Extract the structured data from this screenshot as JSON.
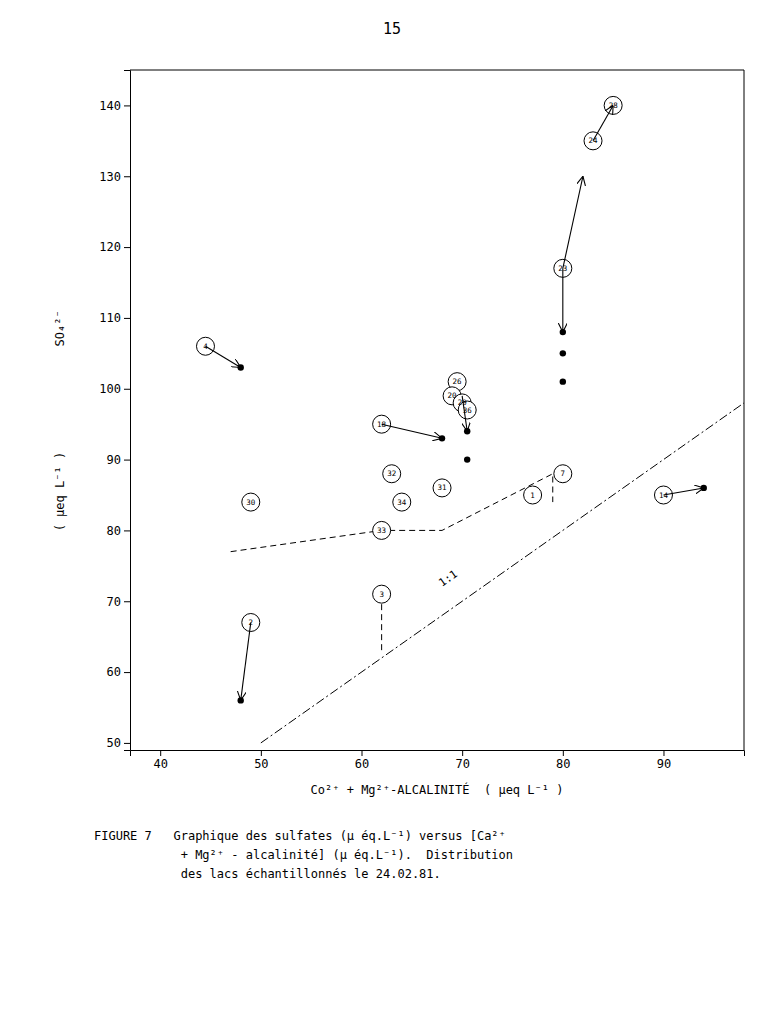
{
  "chart_data": {
    "type": "scatter",
    "title": "15",
    "x_label": "Co²⁺ + Mg²⁺-ALCALINITÉ  ( μeq L⁻¹ )",
    "y_label": [
      "SO₄²⁻",
      "( μeq L⁻¹ )"
    ],
    "caption": [
      "FIGURE 7   Graphique des sulfates (μ éq.L⁻¹) versus [Ca²⁺",
      "            + Mg²⁺ - alcalinité] (μ éq.L⁻¹).  Distribution",
      "            des lacs échantillonnés le 24.02.81."
    ],
    "xlim": [
      37,
      98
    ],
    "ylim": [
      49,
      145
    ],
    "xticks": [
      40,
      50,
      60,
      70,
      80,
      90
    ],
    "yticks": [
      50,
      60,
      70,
      80,
      90,
      100,
      110,
      120,
      130,
      140
    ],
    "points": {
      "labels": [
        "4",
        "30",
        "2",
        "18",
        "32",
        "33",
        "3",
        "34",
        "26",
        "20",
        "29",
        "36",
        "31",
        "23",
        "7",
        "1",
        "24",
        "28",
        "14"
      ],
      "x": [
        44.5,
        49,
        49,
        62,
        63,
        62,
        62,
        64,
        69.5,
        69,
        70,
        70.5,
        68,
        80,
        80,
        77,
        83,
        85,
        90
      ],
      "y": [
        106,
        84,
        67,
        95,
        88,
        80,
        71,
        84,
        101,
        99,
        98,
        97,
        86,
        117,
        88,
        85,
        135,
        140,
        85
      ]
    },
    "dots": {
      "x": [
        48,
        48,
        68,
        70.5,
        70.5,
        80,
        80,
        80,
        94
      ],
      "y": [
        103,
        56,
        93,
        94,
        90,
        108,
        105,
        101,
        86
      ]
    },
    "arrows": [
      {
        "x": [
          44.5,
          48
        ],
        "y": [
          106,
          103
        ]
      },
      {
        "x": [
          49,
          48
        ],
        "y": [
          67,
          56
        ]
      },
      {
        "x": [
          62,
          68
        ],
        "y": [
          95,
          93
        ]
      },
      {
        "x": [
          70,
          70.5
        ],
        "y": [
          99,
          94
        ]
      },
      {
        "x": [
          80,
          80
        ],
        "y": [
          117,
          108
        ]
      },
      {
        "x": [
          80,
          82
        ],
        "y": [
          117,
          130
        ]
      },
      {
        "x": [
          83,
          85
        ],
        "y": [
          135,
          140
        ]
      },
      {
        "x": [
          90,
          94
        ],
        "y": [
          85,
          86
        ]
      }
    ],
    "lines": [
      {
        "x": [
          50,
          98
        ],
        "y": [
          50,
          98
        ],
        "line_style": "dash-dot"
      },
      {
        "x": [
          47,
          62,
          68,
          79,
          79
        ],
        "y": [
          77,
          80,
          80,
          88,
          84
        ],
        "line_style": "dashed"
      },
      {
        "x": [
          62,
          62
        ],
        "y": [
          71,
          63
        ],
        "line_style": "dashed"
      }
    ],
    "annotations": [
      {
        "text": "1:1",
        "x": 68,
        "y": 72
      }
    ]
  }
}
